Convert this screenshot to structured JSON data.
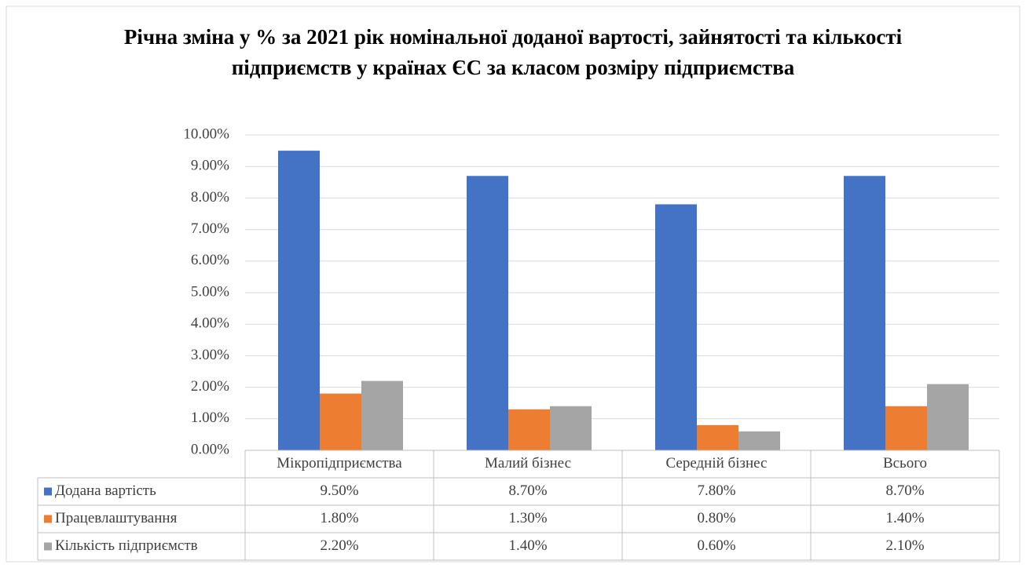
{
  "chart_data": {
    "type": "bar",
    "title": "Річна зміна у % за 2021 рік  номінальної доданої вартості, зайнятості та кількості підприємств у країнах ЄС за класом розміру підприємства",
    "categories": [
      "Мікропідприємства",
      "Малий бізнес",
      "Середній бізнес",
      "Всього"
    ],
    "series": [
      {
        "name": "Додана вартість",
        "color": "#4472c4",
        "values": [
          9.5,
          8.7,
          7.8,
          8.7
        ],
        "value_labels": [
          "9.50%",
          "8.70%",
          "7.80%",
          "8.70%"
        ]
      },
      {
        "name": "Працевлаштування",
        "color": "#ed7d31",
        "values": [
          1.8,
          1.3,
          0.8,
          1.4
        ],
        "value_labels": [
          "1.80%",
          "1.30%",
          "0.80%",
          "1.40%"
        ]
      },
      {
        "name": "Кількість підприємств",
        "color": "#a5a5a5",
        "values": [
          2.2,
          1.4,
          0.6,
          2.1
        ],
        "value_labels": [
          "2.20%",
          "1.40%",
          "0.60%",
          "2.10%"
        ]
      }
    ],
    "ylim": [
      0,
      10
    ],
    "yticks": [
      {
        "value": 0,
        "label": "0.00%"
      },
      {
        "value": 1,
        "label": "1.00%"
      },
      {
        "value": 2,
        "label": "2.00%"
      },
      {
        "value": 3,
        "label": "3.00%"
      },
      {
        "value": 4,
        "label": "4.00%"
      },
      {
        "value": 5,
        "label": "5.00%"
      },
      {
        "value": 6,
        "label": "6.00%"
      },
      {
        "value": 7,
        "label": "7.00%"
      },
      {
        "value": 8,
        "label": "8.00%"
      },
      {
        "value": 9,
        "label": "9.00%"
      },
      {
        "value": 10,
        "label": "10.00%"
      }
    ],
    "grid": true
  }
}
